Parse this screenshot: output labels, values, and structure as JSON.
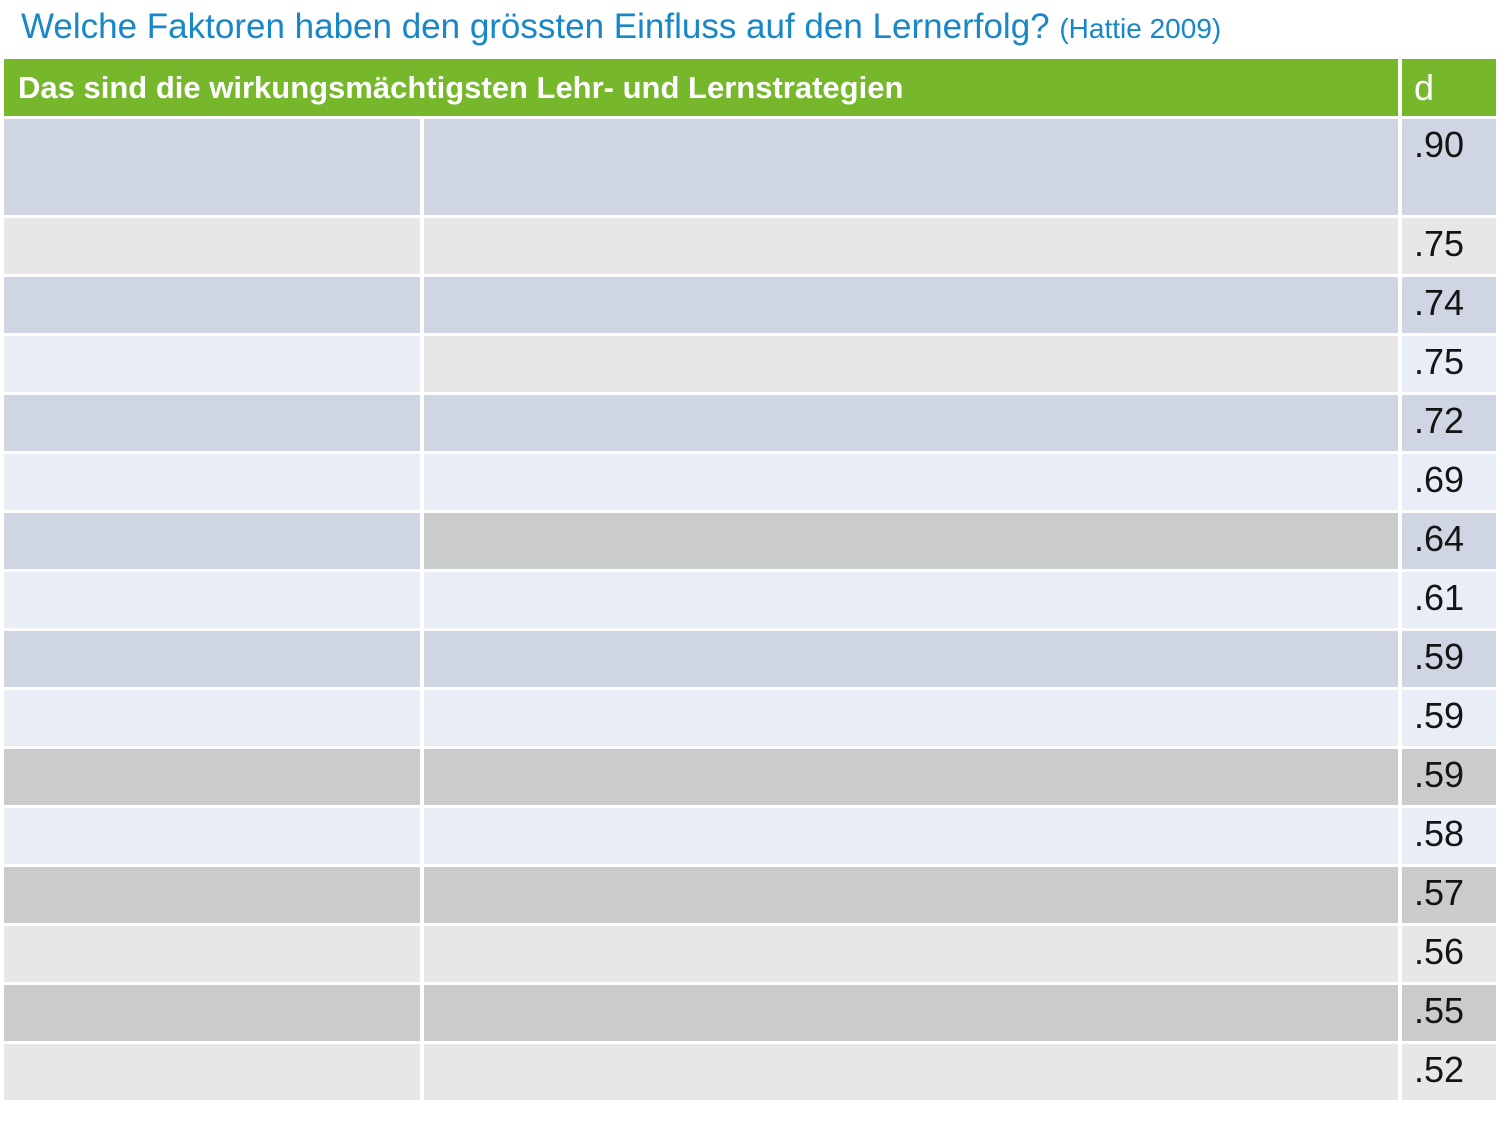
{
  "page": {
    "title": "Welche Faktoren haben den grössten Einfluss auf den Lernerfolg?",
    "title_suffix": "(Hattie 2009)"
  },
  "colors": {
    "title_blue": "#1787C8",
    "header_green": "#76B72B",
    "row_blue": "#D0D5E3",
    "row_light_blue": "#E9EDF6",
    "row_light_gray": "#E6E7E6",
    "row_dark_gray": "#C9CCCB"
  },
  "table": {
    "header": {
      "label": "Das sind die wirkungsmächtigsten Lehr- und Lernstrategien",
      "d_label": "d"
    },
    "columns": [
      "category",
      "description",
      "d"
    ],
    "rows": [
      {
        "d": ".90",
        "c1": "blue",
        "c2": "blue",
        "c3": "blue",
        "tall": true
      },
      {
        "d": ".75",
        "c1": "gray",
        "c2": "gray",
        "c3": "gray"
      },
      {
        "d": ".74",
        "c1": "blue",
        "c2": "blue",
        "c3": "blue"
      },
      {
        "d": ".75",
        "c1": "lightblue",
        "c2": "gray",
        "c3": "lightblue"
      },
      {
        "d": ".72",
        "c1": "blue",
        "c2": "blue",
        "c3": "blue"
      },
      {
        "d": ".69",
        "c1": "lightblue",
        "c2": "lightblue",
        "c3": "lightblue"
      },
      {
        "d": ".64",
        "c1": "blue",
        "c2": "darkgray",
        "c3": "blue"
      },
      {
        "d": ".61",
        "c1": "lightblue",
        "c2": "lightblue",
        "c3": "lightblue"
      },
      {
        "d": ".59",
        "c1": "blue",
        "c2": "blue",
        "c3": "blue"
      },
      {
        "d": ".59",
        "c1": "lightblue",
        "c2": "lightblue",
        "c3": "lightblue"
      },
      {
        "d": ".59",
        "c1": "darkgray",
        "c2": "darkgray",
        "c3": "darkgray"
      },
      {
        "d": ".58",
        "c1": "lightblue",
        "c2": "lightblue",
        "c3": "lightblue"
      },
      {
        "d": ".57",
        "c1": "darkgray",
        "c2": "darkgray",
        "c3": "darkgray"
      },
      {
        "d": ".56",
        "c1": "gray",
        "c2": "gray",
        "c3": "gray"
      },
      {
        "d": ".55",
        "c1": "darkgray",
        "c2": "darkgray",
        "c3": "darkgray"
      },
      {
        "d": ".52",
        "c1": "gray",
        "c2": "gray",
        "c3": "gray"
      }
    ]
  }
}
